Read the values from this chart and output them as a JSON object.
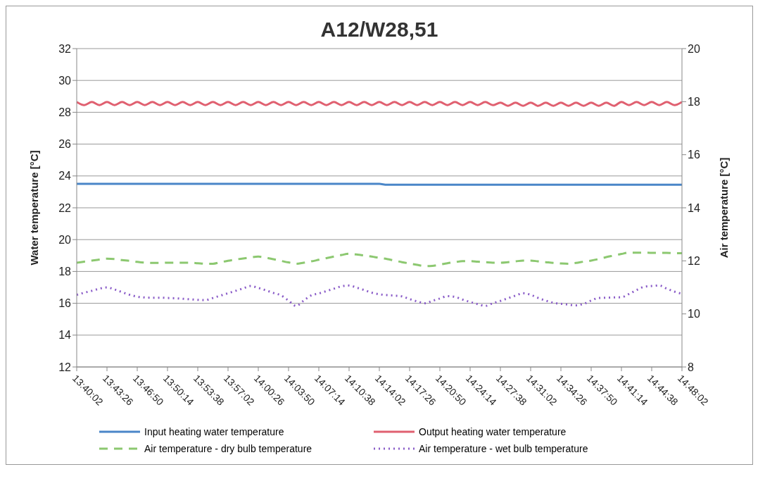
{
  "chart_data": {
    "type": "line",
    "title": "A12/W28,51",
    "ylabel": "Water temperature [°C]",
    "y2label": "Air temperature [°C]",
    "categories": [
      "13:40:02",
      null,
      null,
      null,
      "13:43:26",
      null,
      null,
      null,
      "13:46:50",
      null,
      null,
      null,
      "13:50:14",
      null,
      null,
      null,
      "13:53:38",
      null,
      null,
      null,
      "13:57:02",
      null,
      null,
      null,
      "14:00:26",
      null,
      null,
      null,
      "14:03:50",
      null,
      null,
      null,
      "14:07:14",
      null,
      null,
      null,
      "14:10:38",
      null,
      null,
      null,
      "14:14:02",
      null,
      null,
      null,
      "14:17:26",
      null,
      null,
      null,
      "14:20:50",
      null,
      null,
      null,
      "14:24:14",
      null,
      null,
      null,
      "14:27:38",
      null,
      null,
      null,
      "14:31:02",
      null,
      null,
      null,
      "14:34:26",
      null,
      null,
      null,
      "14:37:50",
      null,
      null,
      null,
      "14:41:14",
      null,
      null,
      null,
      "14:44:38",
      null,
      null,
      null,
      "14:48:02"
    ],
    "series": [
      {
        "name": "Input heating water temperature",
        "color": "#4a86c8",
        "line_style": "solid",
        "values": [
          23.5,
          23.5,
          23.5,
          23.5,
          23.5,
          23.5,
          23.5,
          23.5,
          23.5,
          23.5,
          23.5,
          23.5,
          23.5,
          23.5,
          23.5,
          23.5,
          23.5,
          23.5,
          23.5,
          23.5,
          23.5,
          23.5,
          23.5,
          23.5,
          23.5,
          23.5,
          23.5,
          23.5,
          23.5,
          23.5,
          23.5,
          23.5,
          23.5,
          23.5,
          23.5,
          23.5,
          23.5,
          23.5,
          23.5,
          23.5,
          23.5,
          23.45,
          23.45,
          23.45,
          23.45,
          23.45,
          23.45,
          23.45,
          23.45,
          23.45,
          23.45,
          23.45,
          23.45,
          23.45,
          23.45,
          23.45,
          23.45,
          23.45,
          23.45,
          23.45,
          23.45,
          23.45,
          23.45,
          23.45,
          23.45,
          23.45,
          23.45,
          23.45,
          23.45,
          23.45,
          23.45,
          23.45,
          23.45,
          23.45,
          23.45,
          23.45,
          23.45,
          23.45,
          23.45,
          23.45,
          23.45
        ]
      },
      {
        "name": "Output heating water temperature",
        "color": "#e06070",
        "line_style": "solid",
        "values": [
          28.65,
          28.45,
          28.65,
          28.45,
          28.65,
          28.45,
          28.65,
          28.45,
          28.65,
          28.45,
          28.65,
          28.45,
          28.65,
          28.45,
          28.65,
          28.45,
          28.65,
          28.45,
          28.65,
          28.45,
          28.65,
          28.45,
          28.65,
          28.45,
          28.65,
          28.45,
          28.65,
          28.45,
          28.65,
          28.45,
          28.65,
          28.45,
          28.65,
          28.45,
          28.65,
          28.45,
          28.65,
          28.45,
          28.65,
          28.45,
          28.65,
          28.45,
          28.65,
          28.45,
          28.65,
          28.45,
          28.65,
          28.45,
          28.65,
          28.45,
          28.65,
          28.45,
          28.65,
          28.45,
          28.65,
          28.45,
          28.6,
          28.4,
          28.6,
          28.4,
          28.6,
          28.4,
          28.6,
          28.4,
          28.6,
          28.4,
          28.6,
          28.4,
          28.6,
          28.4,
          28.6,
          28.4,
          28.65,
          28.45,
          28.65,
          28.45,
          28.65,
          28.45,
          28.65,
          28.45,
          28.65
        ]
      },
      {
        "name": "Air temperature - dry bulb temperature",
        "color": "#8cc870",
        "line_style": "dashed",
        "axis": "y2",
        "values": [
          11.93,
          11.97,
          12.01,
          12.05,
          12.08,
          12.07,
          12.03,
          12.0,
          11.96,
          11.93,
          11.92,
          11.92,
          11.93,
          11.93,
          11.93,
          11.93,
          11.91,
          11.89,
          11.89,
          11.95,
          12.0,
          12.05,
          12.09,
          12.13,
          12.16,
          12.12,
          12.06,
          12.0,
          11.94,
          11.89,
          11.93,
          11.98,
          12.04,
          12.1,
          12.16,
          12.22,
          12.27,
          12.24,
          12.2,
          12.16,
          12.11,
          12.07,
          12.01,
          11.95,
          11.9,
          11.85,
          11.8,
          11.81,
          11.86,
          11.91,
          11.95,
          11.99,
          11.99,
          11.97,
          11.95,
          11.93,
          11.93,
          11.95,
          11.98,
          12.01,
          12.01,
          11.98,
          11.95,
          11.92,
          11.9,
          11.89,
          11.92,
          11.97,
          12.01,
          12.07,
          12.14,
          12.2,
          12.26,
          12.31,
          12.31,
          12.31,
          12.3,
          12.3,
          12.3,
          12.29,
          12.29
        ]
      },
      {
        "name": "Air temperature - wet bulb temperature",
        "color": "#8a5cc8",
        "line_style": "dotted",
        "axis": "y2",
        "values": [
          10.72,
          10.8,
          10.87,
          10.95,
          11.0,
          10.92,
          10.82,
          10.72,
          10.65,
          10.62,
          10.61,
          10.61,
          10.6,
          10.59,
          10.57,
          10.55,
          10.53,
          10.52,
          10.6,
          10.69,
          10.78,
          10.87,
          10.96,
          11.05,
          10.98,
          10.89,
          10.79,
          10.7,
          10.5,
          10.3,
          10.5,
          10.7,
          10.77,
          10.86,
          10.95,
          11.04,
          11.07,
          10.99,
          10.9,
          10.8,
          10.74,
          10.71,
          10.69,
          10.66,
          10.56,
          10.47,
          10.4,
          10.49,
          10.58,
          10.67,
          10.64,
          10.54,
          10.45,
          10.37,
          10.3,
          10.4,
          10.49,
          10.59,
          10.69,
          10.78,
          10.72,
          10.6,
          10.5,
          10.42,
          10.38,
          10.35,
          10.32,
          10.38,
          10.5,
          10.6,
          10.61,
          10.62,
          10.63,
          10.75,
          10.9,
          11.02,
          11.05,
          11.07,
          10.95,
          10.84,
          10.76
        ]
      }
    ],
    "ylim": [
      12,
      32
    ],
    "yticks": [
      12,
      14,
      16,
      18,
      20,
      22,
      24,
      26,
      28,
      30,
      32
    ],
    "y2lim": [
      8,
      20
    ],
    "y2ticks": [
      8,
      10,
      12,
      14,
      16,
      18,
      20
    ],
    "grid": "y",
    "legend": "bottom"
  }
}
